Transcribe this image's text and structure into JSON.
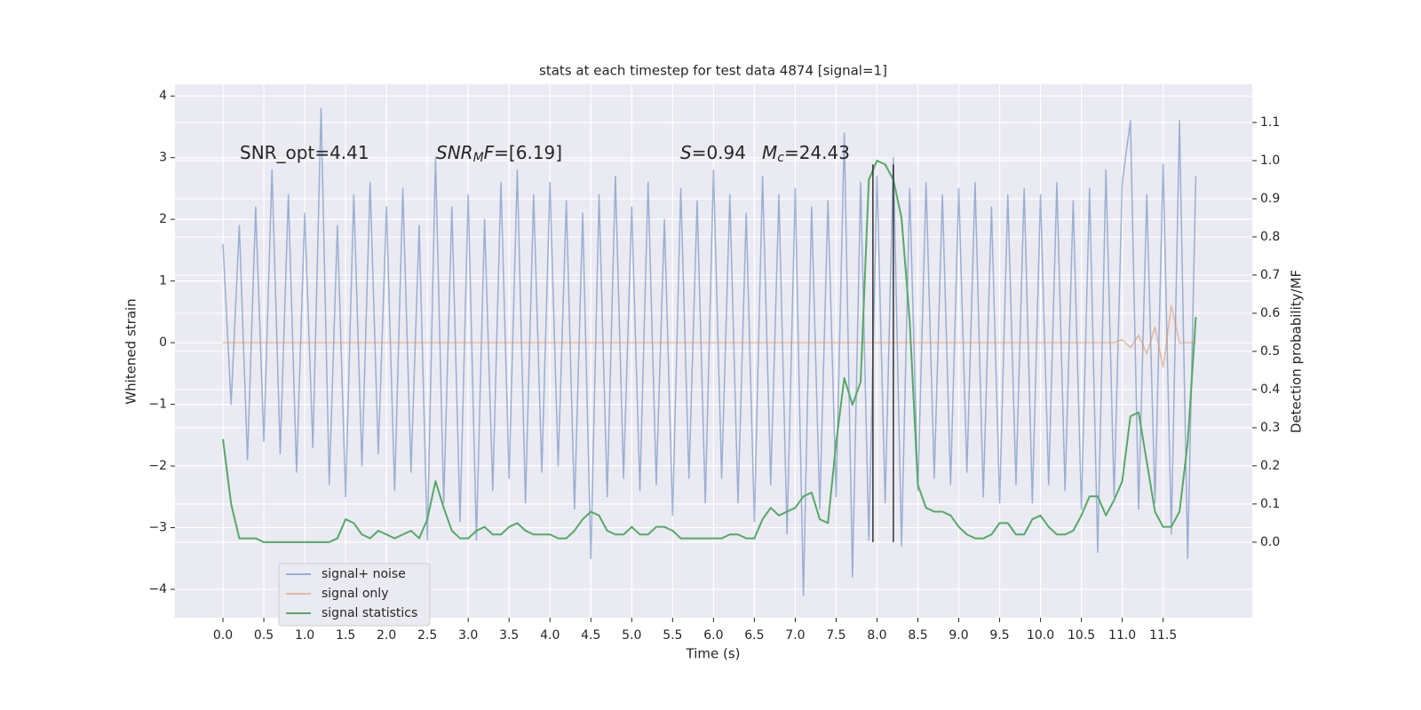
{
  "chart_data": {
    "type": "line",
    "title": "stats at each timestep for test data 4874 [signal=1]",
    "xlabel": "Time (s)",
    "ylabel": "Whitened strain",
    "y2label": "Detection probability/MF",
    "xlim": [
      -0.587,
      12.59
    ],
    "ylim": [
      -4.46,
      4.19
    ],
    "y2lim": [
      -0.198,
      1.2
    ],
    "xticks": [
      {
        "value": 0,
        "label": "0.0"
      },
      0.5,
      {
        "value": 1,
        "label": "1.0"
      },
      1.5,
      {
        "value": 2,
        "label": "2.0"
      },
      2.5,
      {
        "value": 3,
        "label": "3.0"
      },
      3.5,
      {
        "value": 4,
        "label": "4.0"
      },
      4.5,
      {
        "value": 5,
        "label": "5.0"
      },
      5.5,
      {
        "value": 6,
        "label": "6.0"
      },
      6.5,
      {
        "value": 7,
        "label": "7.0"
      },
      7.5,
      {
        "value": 8,
        "label": "8.0"
      },
      8.5,
      {
        "value": 9,
        "label": "9.0"
      },
      9.5,
      {
        "value": 10,
        "label": "10.0"
      },
      10.5,
      {
        "value": 11,
        "label": "11.0"
      },
      11.5
    ],
    "yticks": [
      {
        "value": -4,
        "label": "−4"
      },
      {
        "value": -3,
        "label": "−3"
      },
      {
        "value": -2,
        "label": "−2"
      },
      {
        "value": -1,
        "label": "−1"
      },
      0,
      1,
      2,
      3,
      4
    ],
    "y2ticks": [
      {
        "value": 0,
        "label": "0.0"
      },
      0.1,
      0.2,
      0.3,
      0.4,
      0.5,
      0.6,
      0.7,
      0.8,
      0.9,
      {
        "value": 1,
        "label": "1.0"
      },
      1.1
    ],
    "grid": true,
    "legend": "lower left",
    "x": [
      0.0,
      0.1,
      0.2,
      0.3,
      0.4,
      0.5,
      0.6,
      0.7,
      0.8,
      0.9,
      1.0,
      1.1,
      1.2,
      1.3,
      1.4,
      1.5,
      1.6,
      1.7,
      1.8,
      1.9,
      2.0,
      2.1,
      2.2,
      2.3,
      2.4,
      2.5,
      2.6,
      2.7,
      2.8,
      2.9,
      3.0,
      3.1,
      3.2,
      3.3,
      3.4,
      3.5,
      3.6,
      3.7,
      3.8,
      3.9,
      4.0,
      4.1,
      4.2,
      4.3,
      4.4,
      4.5,
      4.6,
      4.7,
      4.8,
      4.9,
      5.0,
      5.1,
      5.2,
      5.3,
      5.4,
      5.5,
      5.6,
      5.7,
      5.8,
      5.9,
      6.0,
      6.1,
      6.2,
      6.3,
      6.4,
      6.5,
      6.6,
      6.7,
      6.8,
      6.9,
      7.0,
      7.1,
      7.2,
      7.3,
      7.4,
      7.5,
      7.6,
      7.7,
      7.8,
      7.9,
      8.0,
      8.1,
      8.2,
      8.3,
      8.4,
      8.5,
      8.6,
      8.7,
      8.8,
      8.9,
      9.0,
      9.1,
      9.2,
      9.3,
      9.4,
      9.5,
      9.6,
      9.7,
      9.8,
      9.9,
      10.0,
      10.1,
      10.2,
      10.3,
      10.4,
      10.5,
      10.6,
      10.7,
      10.8,
      10.9,
      11.0,
      11.1,
      11.2,
      11.3,
      11.4,
      11.5,
      11.6,
      11.7,
      11.8,
      11.9
    ],
    "series": [
      {
        "name": "signal+ noise",
        "color": "#4c72b0",
        "alpha": 0.5,
        "values": [
          1.6,
          -1.0,
          1.9,
          -1.9,
          2.2,
          -1.6,
          2.8,
          -1.8,
          2.4,
          -2.1,
          2.1,
          -1.7,
          3.8,
          -2.3,
          1.9,
          -2.5,
          2.4,
          -2.0,
          2.6,
          -1.8,
          2.2,
          -2.4,
          2.5,
          -2.1,
          1.9,
          -3.2,
          3.0,
          -2.6,
          2.2,
          -2.9,
          2.4,
          -3.2,
          2.0,
          -2.4,
          2.6,
          -2.2,
          2.8,
          -2.6,
          2.4,
          -2.1,
          2.6,
          -2.0,
          2.3,
          -2.7,
          2.1,
          -3.5,
          2.4,
          -2.5,
          2.7,
          -2.2,
          2.2,
          -2.4,
          2.6,
          -2.3,
          2.0,
          -2.8,
          2.5,
          -2.2,
          2.3,
          -2.6,
          2.8,
          -2.2,
          2.4,
          -2.6,
          2.1,
          -2.9,
          2.7,
          -2.3,
          2.4,
          -3.1,
          2.5,
          -4.1,
          2.2,
          -2.7,
          2.3,
          -2.5,
          3.4,
          -3.8,
          2.6,
          -3.2,
          2.7,
          -2.6,
          3.0,
          -3.3,
          2.5,
          -2.4,
          2.6,
          -2.2,
          2.4,
          -2.3,
          2.5,
          -2.1,
          2.6,
          -2.5,
          2.2,
          -2.6,
          2.4,
          -2.3,
          2.5,
          -2.6,
          2.4,
          -2.3,
          2.6,
          -2.4,
          2.3,
          -2.7,
          2.5,
          -3.4,
          2.8,
          -2.5,
          2.6,
          3.6,
          -2.7,
          2.4,
          -2.6,
          2.9,
          -3.1,
          3.6,
          -3.5,
          2.7
        ]
      },
      {
        "name": "signal only",
        "color": "#dd8452",
        "alpha": 0.5,
        "values": [
          0,
          0,
          0,
          0,
          0,
          0,
          0,
          0,
          0,
          0,
          0,
          0,
          0,
          0,
          0,
          0,
          0,
          0,
          0,
          0,
          0,
          0,
          0,
          0,
          0,
          0,
          0,
          0,
          0,
          0,
          0,
          0,
          0,
          0,
          0,
          0,
          0,
          0,
          0,
          0,
          0,
          0,
          0,
          0,
          0,
          0,
          0,
          0,
          0,
          0,
          0,
          0,
          0,
          0,
          0,
          0,
          0,
          0,
          0,
          0,
          0,
          0,
          0,
          0,
          0,
          0,
          0,
          0,
          0,
          0,
          0,
          0,
          0,
          0,
          0,
          0,
          0,
          0,
          0,
          0,
          0,
          0,
          0,
          0,
          0,
          0,
          0,
          0,
          0,
          0,
          0,
          0,
          0,
          0,
          0,
          0,
          0,
          0,
          0,
          0,
          0,
          0,
          0,
          0,
          0,
          0,
          0,
          0,
          0,
          0,
          0.05,
          -0.08,
          0.12,
          -0.18,
          0.25,
          -0.4,
          0.6,
          0,
          0,
          0
        ]
      },
      {
        "name": "signal statistics",
        "color": "#55a868",
        "alpha": 1,
        "axis": "y2",
        "values": [
          0.27,
          0.1,
          0.01,
          0.01,
          0.01,
          0.0,
          0.0,
          0.0,
          0.0,
          0.0,
          0.0,
          0.0,
          0.0,
          0.0,
          0.01,
          0.06,
          0.05,
          0.02,
          0.01,
          0.03,
          0.02,
          0.01,
          0.02,
          0.03,
          0.01,
          0.06,
          0.16,
          0.09,
          0.03,
          0.01,
          0.01,
          0.03,
          0.04,
          0.02,
          0.02,
          0.04,
          0.05,
          0.03,
          0.02,
          0.02,
          0.02,
          0.01,
          0.01,
          0.03,
          0.06,
          0.08,
          0.07,
          0.03,
          0.02,
          0.02,
          0.04,
          0.02,
          0.02,
          0.04,
          0.04,
          0.03,
          0.01,
          0.01,
          0.01,
          0.01,
          0.01,
          0.01,
          0.02,
          0.02,
          0.01,
          0.01,
          0.06,
          0.09,
          0.07,
          0.08,
          0.09,
          0.12,
          0.13,
          0.06,
          0.05,
          0.26,
          0.43,
          0.36,
          0.42,
          0.95,
          1.0,
          0.99,
          0.95,
          0.85,
          0.58,
          0.15,
          0.09,
          0.08,
          0.08,
          0.07,
          0.04,
          0.02,
          0.01,
          0.01,
          0.02,
          0.05,
          0.05,
          0.02,
          0.02,
          0.06,
          0.07,
          0.04,
          0.02,
          0.02,
          0.03,
          0.07,
          0.12,
          0.12,
          0.07,
          0.11,
          0.16,
          0.33,
          0.34,
          0.21,
          0.08,
          0.04,
          0.04,
          0.08,
          0.26,
          0.59
        ]
      }
    ],
    "vlines": [
      {
        "x": 7.95,
        "ymin": 0,
        "ymax": 0.99,
        "color": "#333333"
      },
      {
        "x": 8.2,
        "ymin": 0,
        "ymax": 0.99,
        "color": "#333333"
      }
    ],
    "annotations": [
      {
        "parts": [
          {
            "text": "SNR_opt=4.41"
          }
        ]
      },
      {
        "parts": [
          {
            "text": "SNR",
            "italic": true
          },
          {
            "text": "M",
            "italic": true,
            "sub": true
          },
          {
            "text": "F",
            "italic": true
          },
          {
            "text": "=[6.19]"
          }
        ]
      },
      {
        "parts": [
          {
            "text": "S",
            "italic": true
          },
          {
            "text": "=0.94"
          }
        ]
      },
      {
        "parts": [
          {
            "text": "M",
            "italic": true
          },
          {
            "text": "c",
            "italic": true,
            "sub": true
          },
          {
            "text": "=24.43"
          }
        ]
      }
    ]
  }
}
